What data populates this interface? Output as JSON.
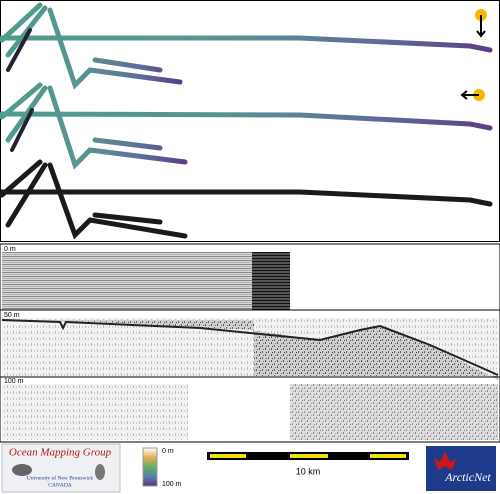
{
  "depth_labels": [
    "0 m",
    "50 m",
    "100 m"
  ],
  "logo": {
    "title": "Ocean Mapping Group",
    "line1": "University of New Brunswick",
    "line2": "CANADA"
  },
  "color_scale": {
    "top": "0 m",
    "bottom": "100 m"
  },
  "scale_bar": {
    "label": "10 km"
  },
  "partner_logo": "ArcticNet"
}
